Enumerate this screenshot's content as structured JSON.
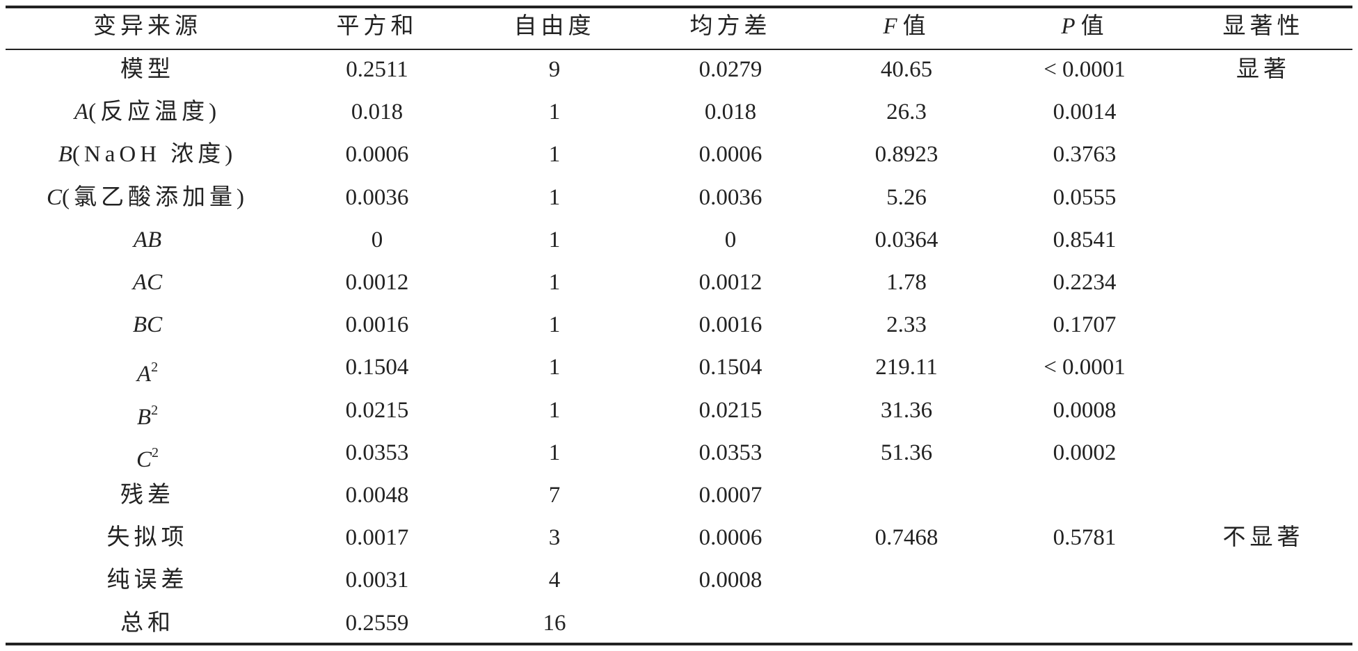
{
  "table": {
    "header": [
      "变异来源",
      "平方和",
      "自由度",
      "均方差",
      {
        "var": "F",
        "rest": "值"
      },
      {
        "var": "P",
        "rest": "值"
      },
      "显著性"
    ],
    "rows": [
      [
        "模型",
        "0.2511",
        "9",
        "0.0279",
        "40.65",
        "< 0.0001",
        "显著"
      ],
      [
        {
          "var": "A",
          "rest": "(反应温度)"
        },
        "0.018",
        "1",
        "0.018",
        "26.3",
        "0.0014",
        null
      ],
      [
        {
          "var": "B",
          "rest": "(NaOH 浓度)"
        },
        "0.0006",
        "1",
        "0.0006",
        "0.8923",
        "0.3763",
        null
      ],
      [
        {
          "var": "C",
          "rest": "(氯乙酸添加量)"
        },
        "0.0036",
        "1",
        "0.0036",
        "5.26",
        "0.0555",
        null
      ],
      [
        {
          "var": "AB"
        },
        "0",
        "1",
        "0",
        "0.0364",
        "0.8541",
        null
      ],
      [
        {
          "var": "AC"
        },
        "0.0012",
        "1",
        "0.0012",
        "1.78",
        "0.2234",
        null
      ],
      [
        {
          "var": "BC"
        },
        "0.0016",
        "1",
        "0.0016",
        "2.33",
        "0.1707",
        null
      ],
      [
        {
          "var": "A",
          "sup": "2"
        },
        "0.1504",
        "1",
        "0.1504",
        "219.11",
        "< 0.0001",
        null
      ],
      [
        {
          "var": "B",
          "sup": "2"
        },
        "0.0215",
        "1",
        "0.0215",
        "31.36",
        "0.0008",
        null
      ],
      [
        {
          "var": "C",
          "sup": "2"
        },
        "0.0353",
        "1",
        "0.0353",
        "51.36",
        "0.0002",
        null
      ],
      [
        "残差",
        "0.0048",
        "7",
        "0.0007",
        null,
        null,
        null
      ],
      [
        "失拟项",
        "0.0017",
        "3",
        "0.0006",
        "0.7468",
        "0.5781",
        "不显著"
      ],
      [
        "纯误差",
        "0.0031",
        "4",
        "0.0008",
        null,
        null,
        null
      ],
      [
        "总和",
        "0.2559",
        "16",
        null,
        null,
        null,
        null
      ]
    ]
  }
}
